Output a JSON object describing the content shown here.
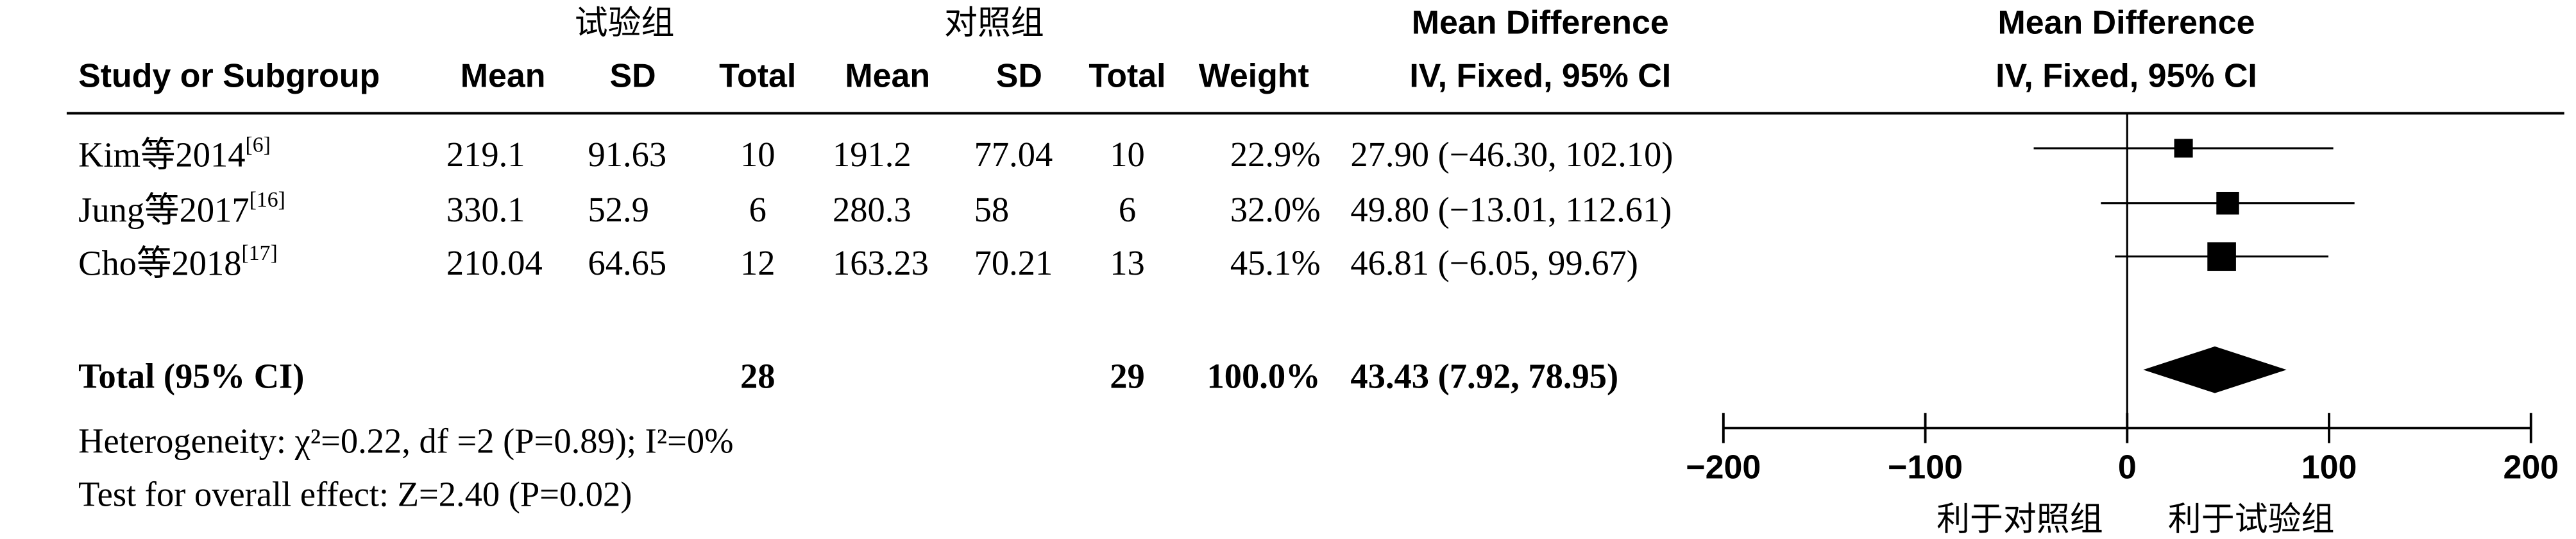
{
  "chart_data": {
    "type": "forest",
    "group_headers": [
      "试验组",
      "对照组"
    ],
    "columns": [
      "Study or Subgroup",
      "Mean",
      "SD",
      "Total",
      "Mean",
      "SD",
      "Total",
      "Weight",
      "Mean Difference",
      "IV, Fixed, 95% CI"
    ],
    "plot_header": [
      "Mean Difference",
      "IV, Fixed, 95% CI"
    ],
    "studies": [
      {
        "name": "Kim等2014",
        "ref": "[6]",
        "exp_mean": 219.1,
        "exp_sd": 91.63,
        "exp_total": 10,
        "ctl_mean": 191.2,
        "ctl_sd": 77.04,
        "ctl_total": 10,
        "weight": 22.9,
        "weight_label": "22.9%",
        "md": 27.9,
        "lo": -46.3,
        "hi": 102.1,
        "ci_label": "27.90 (−46.30, 102.10)"
      },
      {
        "name": "Jung等2017",
        "ref": "[16]",
        "exp_mean": 330.1,
        "exp_sd": 52.9,
        "exp_total": 6,
        "ctl_mean": 280.3,
        "ctl_sd": 58,
        "ctl_total": 6,
        "weight": 32.0,
        "weight_label": "32.0%",
        "md": 49.8,
        "lo": -13.01,
        "hi": 112.61,
        "ci_label": "49.80 (−13.01, 112.61)"
      },
      {
        "name": "Cho等2018",
        "ref": "[17]",
        "exp_mean": 210.04,
        "exp_sd": 64.65,
        "exp_total": 12,
        "ctl_mean": 163.23,
        "ctl_sd": 70.21,
        "ctl_total": 13,
        "weight": 45.1,
        "weight_label": "45.1%",
        "md": 46.81,
        "lo": -6.05,
        "hi": 99.67,
        "ci_label": "46.81 (−6.05, 99.67)"
      }
    ],
    "total": {
      "name": "Total (95% CI)",
      "exp_total": 28,
      "ctl_total": 29,
      "weight": 100.0,
      "weight_label": "100.0%",
      "md": 43.43,
      "lo": 7.92,
      "hi": 78.95,
      "ci_label": "43.43 (7.92, 78.95)"
    },
    "heterogeneity": "Heterogeneity: χ²=0.22, df =2 (P=0.89); I²=0%",
    "overall_effect": "Test for overall effect: Z=2.40 (P=0.02)",
    "xlim": [
      -200,
      200
    ],
    "xticks": [
      {
        "value": -200,
        "label": "−200"
      },
      {
        "value": -100,
        "label": "−100"
      },
      0,
      100,
      200
    ],
    "axis_labels": [
      "利于对照组",
      "利于试验组"
    ],
    "color": "#000000"
  }
}
